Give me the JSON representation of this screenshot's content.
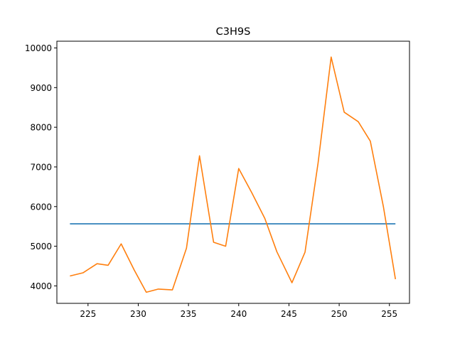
{
  "chart_data": {
    "type": "line",
    "title": "C3H9S",
    "xlabel": "",
    "ylabel": "",
    "xlim": [
      221.9,
      257.0
    ],
    "ylim": [
      3560,
      10170
    ],
    "grid": false,
    "x_ticks": [
      225,
      230,
      235,
      240,
      245,
      250,
      255
    ],
    "y_ticks": [
      4000,
      5000,
      6000,
      7000,
      8000,
      9000,
      10000
    ],
    "series": [
      {
        "color": "#1f77b4",
        "x": [
          223.2,
          255.6
        ],
        "y": [
          5565,
          5565
        ]
      },
      {
        "color": "#ff7f0e",
        "x": [
          223.2,
          224.5,
          225.9,
          227.0,
          228.3,
          229.6,
          230.8,
          232.0,
          233.4,
          234.8,
          236.1,
          237.5,
          238.7,
          240.0,
          241.3,
          242.6,
          243.8,
          245.3,
          246.6,
          247.9,
          249.2,
          250.5,
          251.9,
          253.1,
          254.4,
          255.6
        ],
        "y": [
          4250,
          4330,
          4560,
          4520,
          5060,
          4400,
          3840,
          3920,
          3900,
          4950,
          7280,
          5100,
          5000,
          6960,
          6350,
          5700,
          4860,
          4080,
          4850,
          7100,
          9770,
          8380,
          8140,
          7650,
          6000,
          4170
        ]
      }
    ]
  }
}
